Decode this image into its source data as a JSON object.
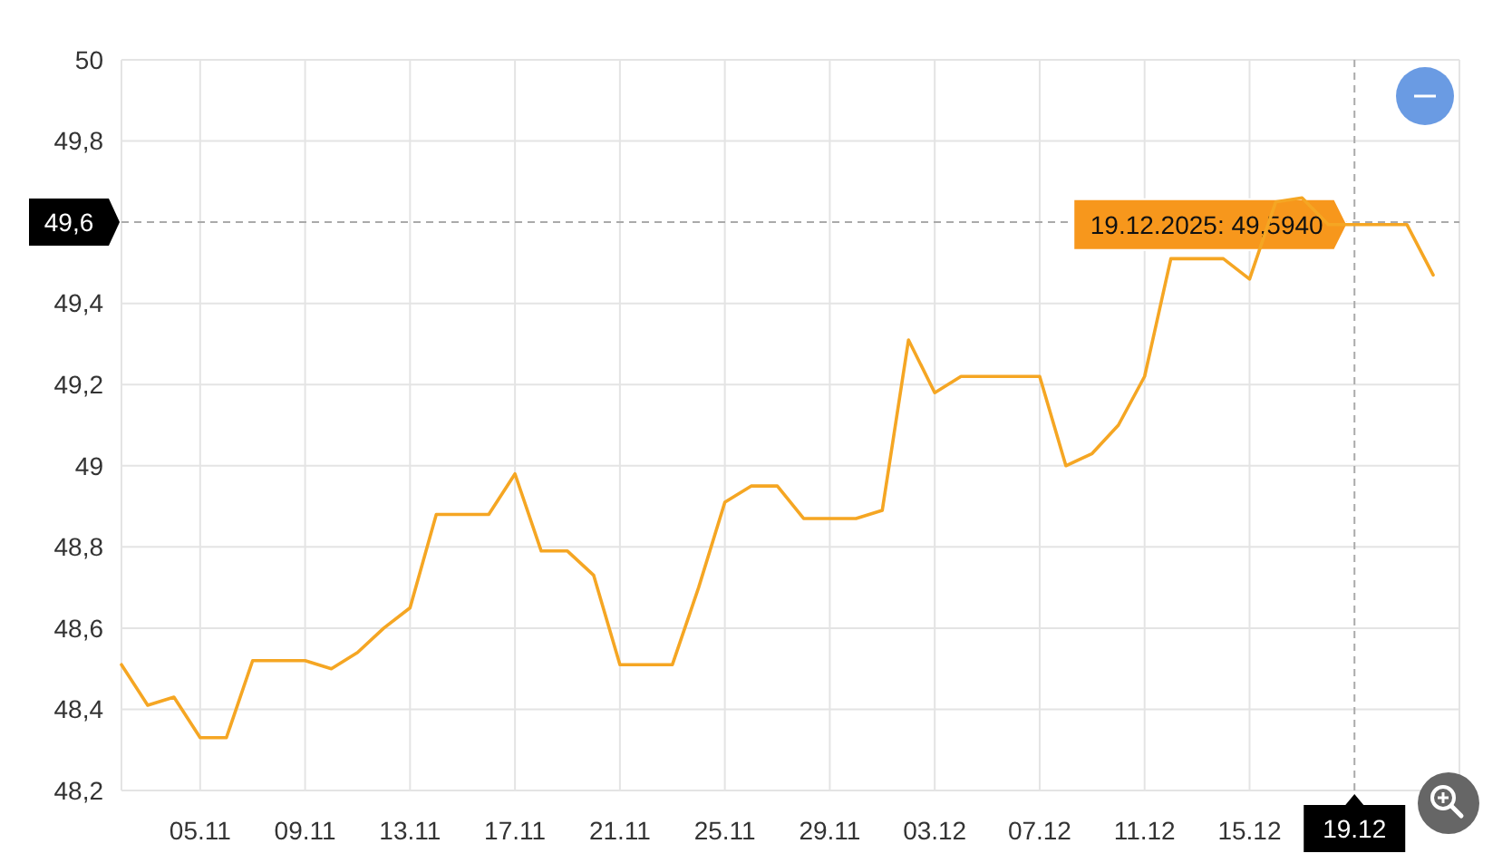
{
  "chart_data": {
    "type": "line",
    "series": [
      {
        "color": "#f5a623",
        "x": [
          "2025-11-02",
          "2025-11-03",
          "2025-11-04",
          "2025-11-05",
          "2025-11-06",
          "2025-11-07",
          "2025-11-08",
          "2025-11-09",
          "2025-11-10",
          "2025-11-11",
          "2025-11-12",
          "2025-11-13",
          "2025-11-14",
          "2025-11-15",
          "2025-11-16",
          "2025-11-17",
          "2025-11-18",
          "2025-11-19",
          "2025-11-20",
          "2025-11-21",
          "2025-11-22",
          "2025-11-23",
          "2025-11-24",
          "2025-11-25",
          "2025-11-26",
          "2025-11-27",
          "2025-11-28",
          "2025-11-29",
          "2025-11-30",
          "2025-12-01",
          "2025-12-02",
          "2025-12-03",
          "2025-12-04",
          "2025-12-05",
          "2025-12-06",
          "2025-12-07",
          "2025-12-08",
          "2025-12-09",
          "2025-12-10",
          "2025-12-11",
          "2025-12-12",
          "2025-12-13",
          "2025-12-14",
          "2025-12-15",
          "2025-12-16",
          "2025-12-17",
          "2025-12-18",
          "2025-12-19",
          "2025-12-20",
          "2025-12-21",
          "2025-12-22"
        ],
        "values": [
          48.51,
          48.41,
          48.43,
          48.33,
          48.33,
          48.52,
          48.52,
          48.52,
          48.5,
          48.54,
          48.6,
          48.65,
          48.88,
          48.88,
          48.88,
          48.98,
          48.79,
          48.79,
          48.73,
          48.51,
          48.51,
          48.51,
          48.7,
          48.91,
          48.95,
          48.95,
          48.87,
          48.87,
          48.87,
          48.89,
          49.31,
          49.18,
          49.22,
          49.22,
          49.22,
          49.22,
          49,
          49.03,
          49.1,
          49.22,
          49.51,
          49.51,
          49.51,
          49.46,
          49.65,
          49.66,
          49.594,
          49.594,
          49.594,
          49.594,
          49.47
        ]
      }
    ],
    "xlim": [
      "2025-11-02",
      "2025-12-23"
    ],
    "xticks": [
      {
        "value": "2025-11-05",
        "label": "05.11"
      },
      {
        "value": "2025-11-09",
        "label": "09.11"
      },
      {
        "value": "2025-11-13",
        "label": "13.11"
      },
      {
        "value": "2025-11-17",
        "label": "17.11"
      },
      {
        "value": "2025-11-21",
        "label": "21.11"
      },
      {
        "value": "2025-11-25",
        "label": "25.11"
      },
      {
        "value": "2025-11-29",
        "label": "29.11"
      },
      {
        "value": "2025-12-03",
        "label": "03.12"
      },
      {
        "value": "2025-12-07",
        "label": "07.12"
      },
      {
        "value": "2025-12-11",
        "label": "11.12"
      },
      {
        "value": "2025-12-15",
        "label": "15.12"
      },
      {
        "value": "2025-12-23",
        "label": null
      }
    ],
    "ylim": [
      48.2,
      50
    ],
    "yticks": [
      {
        "value": 48.2,
        "label": "48,2"
      },
      {
        "value": 48.4,
        "label": "48,4"
      },
      {
        "value": 48.6,
        "label": "48,6"
      },
      {
        "value": 48.8,
        "label": "48,8"
      },
      49,
      {
        "value": 49.2,
        "label": "49,2"
      },
      {
        "value": 49.4,
        "label": "49,4"
      },
      {
        "value": 49.8,
        "label": "49,8"
      },
      50
    ],
    "grid": true,
    "line_style": "solid",
    "marker": "none",
    "ref_lines": [
      {
        "axis": "y",
        "value": 49.6,
        "label": "49,6",
        "color": "#aaaaaa",
        "line_style": "dashed"
      },
      {
        "axis": "x",
        "value": "2025-12-19",
        "label": "19.12",
        "color": "#aaaaaa",
        "line_style": "dashed"
      }
    ],
    "annotations": [
      {
        "text": "19.12.2025: 49,5940",
        "x": "2025-12-19",
        "y": 49.594
      }
    ]
  }
}
